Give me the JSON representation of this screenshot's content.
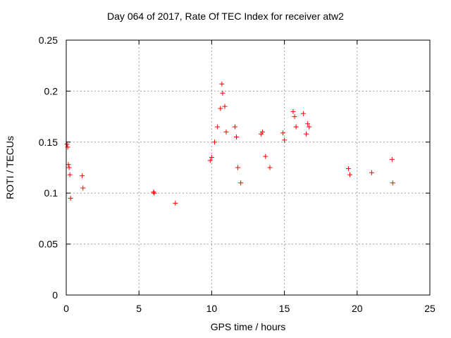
{
  "chart_data": {
    "type": "scatter",
    "title": "Day 064 of 2017, Rate Of TEC Index for receiver atw2",
    "xlabel": "GPS time / hours",
    "ylabel": "ROTI / TECUs",
    "xlim": [
      0,
      25
    ],
    "ylim": [
      0,
      0.25
    ],
    "x_ticks": [
      "0",
      "5",
      "10",
      "15",
      "20",
      "25"
    ],
    "y_ticks": [
      "0",
      "0.05",
      "0.1",
      "0.15",
      "0.2",
      "0.25"
    ],
    "grid": true,
    "legend": "none",
    "marker": "plus",
    "color": "#ff0000",
    "series": [
      {
        "x": [
          0.05,
          0.1,
          0.15,
          0.2,
          0.25,
          0.3,
          1.1,
          1.15,
          6.0,
          6.05,
          7.5,
          9.9,
          10.0,
          10.2,
          10.4,
          10.6,
          10.7,
          10.75,
          10.9,
          11.0,
          11.6,
          11.7,
          11.8,
          12.0,
          13.4,
          13.5,
          13.7,
          14.0,
          14.9,
          15.0,
          15.6,
          15.7,
          15.8,
          16.3,
          16.5,
          16.6,
          16.7,
          19.4,
          19.5,
          21.0,
          22.4,
          22.45
        ],
        "y": [
          0.148,
          0.145,
          0.128,
          0.125,
          0.118,
          0.095,
          0.117,
          0.105,
          0.101,
          0.1,
          0.09,
          0.132,
          0.135,
          0.15,
          0.165,
          0.183,
          0.207,
          0.198,
          0.185,
          0.16,
          0.165,
          0.155,
          0.125,
          0.11,
          0.158,
          0.16,
          0.136,
          0.125,
          0.159,
          0.152,
          0.18,
          0.175,
          0.165,
          0.178,
          0.158,
          0.168,
          0.165,
          0.124,
          0.118,
          0.12,
          0.133,
          0.11
        ]
      }
    ]
  }
}
